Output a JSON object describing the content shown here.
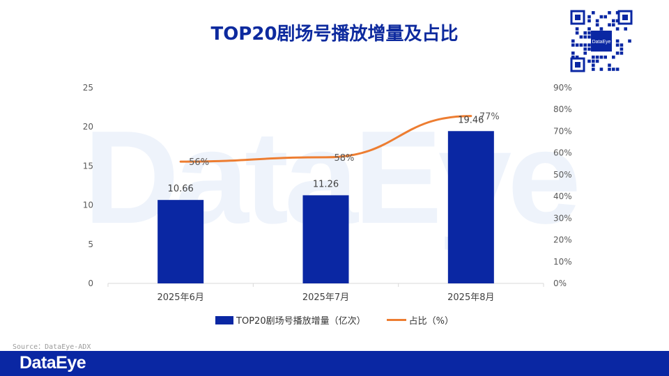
{
  "title": "TOP20剧场号播放增量及占比",
  "watermark": "DataEye",
  "qr_label": "DataEye",
  "source": "Source：DataEye-ADX",
  "footer_logo": "DataEye",
  "colors": {
    "bar": "#0a27a3",
    "line": "#ed7d31",
    "title": "#0d2a9e",
    "footer": "#0a27a3"
  },
  "chart_data": {
    "type": "bar",
    "categories": [
      "2025年6月",
      "2025年7月",
      "2025年8月"
    ],
    "series": [
      {
        "name": "TOP20剧场号播放增量（亿次）",
        "type": "bar",
        "axis": "left",
        "values": [
          10.66,
          11.26,
          19.46
        ],
        "labels": [
          "10.66",
          "11.26",
          "19.46"
        ]
      },
      {
        "name": "占比（%）",
        "type": "line",
        "axis": "right",
        "values": [
          56,
          58,
          77
        ],
        "labels": [
          "56%",
          "58%",
          "77%"
        ]
      }
    ],
    "y_left": {
      "min": 0,
      "max": 25,
      "ticks": [
        "0",
        "5",
        "10",
        "15",
        "20",
        "25"
      ]
    },
    "y_right": {
      "min": 0,
      "max": 90,
      "ticks": [
        "0%",
        "10%",
        "20%",
        "30%",
        "40%",
        "50%",
        "60%",
        "70%",
        "80%",
        "90%"
      ]
    },
    "legend_position": "bottom",
    "grid": false
  }
}
